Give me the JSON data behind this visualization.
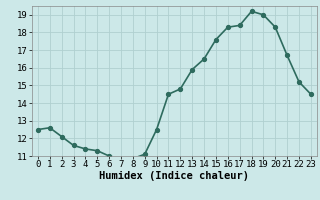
{
  "x": [
    0,
    1,
    2,
    3,
    4,
    5,
    6,
    7,
    8,
    9,
    10,
    11,
    12,
    13,
    14,
    15,
    16,
    17,
    18,
    19,
    20,
    21,
    22,
    23
  ],
  "y": [
    12.5,
    12.6,
    12.1,
    11.6,
    11.4,
    11.3,
    11.0,
    10.85,
    10.85,
    11.1,
    12.5,
    14.5,
    14.8,
    15.9,
    16.5,
    17.6,
    18.3,
    18.4,
    19.2,
    19.0,
    18.3,
    16.7,
    15.2,
    14.5
  ],
  "line_color": "#2e6b5e",
  "marker_color": "#2e6b5e",
  "bg_color": "#cce8e8",
  "grid_color": "#b0d0d0",
  "xlabel": "Humidex (Indice chaleur)",
  "ylim": [
    11,
    19.5
  ],
  "xlim": [
    -0.5,
    23.5
  ],
  "yticks": [
    11,
    12,
    13,
    14,
    15,
    16,
    17,
    18,
    19
  ],
  "xticks": [
    0,
    1,
    2,
    3,
    4,
    5,
    6,
    7,
    8,
    9,
    10,
    11,
    12,
    13,
    14,
    15,
    16,
    17,
    18,
    19,
    20,
    21,
    22,
    23
  ],
  "tick_fontsize": 6.5,
  "xlabel_fontsize": 7.5,
  "linewidth": 1.2,
  "markersize": 2.8
}
